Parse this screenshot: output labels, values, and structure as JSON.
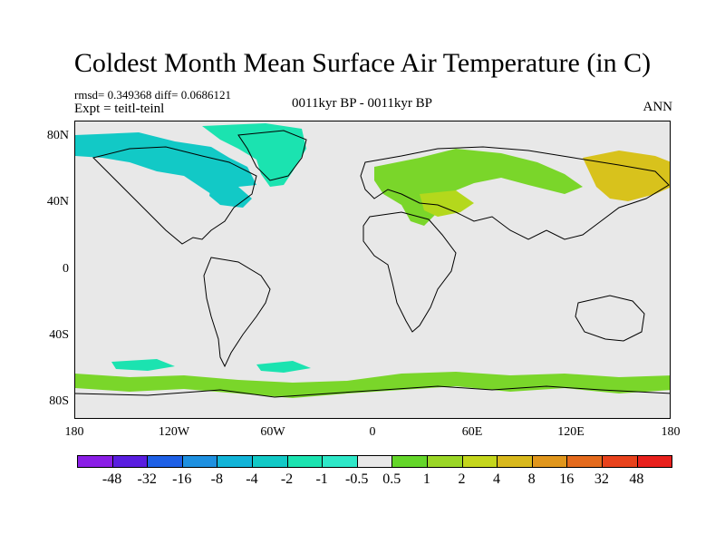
{
  "title": "Coldest Month Mean Surface Air Temperature (in C)",
  "stats": {
    "rmsd_line": "rmsd= 0.349368 diff= 0.0686121",
    "expt_line": "Expt = teitl-teinl",
    "period": "0011kyr BP - 0011kyr BP",
    "season": "ANN"
  },
  "map": {
    "lat_labels": [
      "80N",
      "40N",
      "0",
      "40S",
      "80S"
    ],
    "lon_labels": [
      "180",
      "120W",
      "60W",
      "0",
      "60E",
      "120E",
      "180"
    ],
    "background_color": "#e8e8e8",
    "regions": [
      {
        "name": "arctic-canada-cool-band",
        "category": "-2",
        "color": "#12c9c6"
      },
      {
        "name": "greenland-cool-band",
        "category": "-1",
        "color": "#1be3b0"
      },
      {
        "name": "labrador-cool-patch",
        "category": "-2",
        "color": "#12c9c6"
      },
      {
        "name": "siberia-warm-band",
        "category": "1",
        "color": "#7ad62a"
      },
      {
        "name": "central-asia-warm-patch",
        "category": "2",
        "color": "#b4d81c"
      },
      {
        "name": "far-east-warm-patch",
        "category": "4",
        "color": "#d8c21c"
      },
      {
        "name": "antarctic-coast-warm-band",
        "category": "1",
        "color": "#7ad62a"
      },
      {
        "name": "southern-ocean-cool-patch",
        "category": "-1",
        "color": "#1be3b0"
      }
    ]
  },
  "colorbar": {
    "labels": [
      "-48",
      "-32",
      "-16",
      "-8",
      "-4",
      "-2",
      "-1",
      "-0.5",
      "0.5",
      "1",
      "2",
      "4",
      "8",
      "16",
      "32",
      "48"
    ],
    "colors": [
      "#8a1ee6",
      "#5a1ee0",
      "#1e60e6",
      "#1e90e0",
      "#12b4d8",
      "#12c9c6",
      "#1be3b0",
      "#2ee8c8",
      "#e8e8e8",
      "#64d62a",
      "#9ad626",
      "#c4d61c",
      "#d8b81c",
      "#e0961c",
      "#e46a1c",
      "#e8421c",
      "#e8201c"
    ]
  }
}
